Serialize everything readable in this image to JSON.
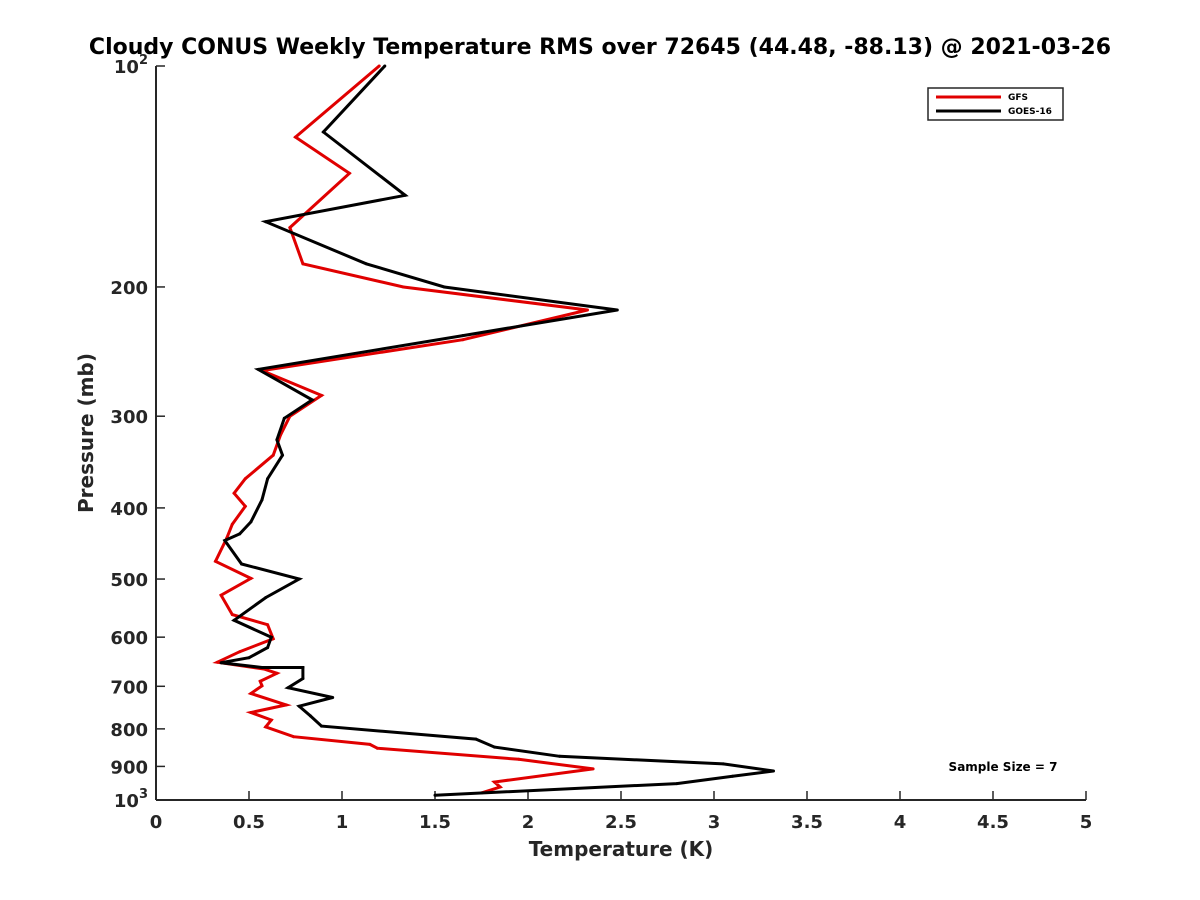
{
  "chart_data": {
    "type": "line",
    "title": "Cloudy CONUS Weekly Temperature RMS over 72645 (44.48, -88.13) @ 2021-03-26",
    "xlabel": "Temperature (K)",
    "ylabel": "Pressure (mb)",
    "xlim": [
      0,
      5
    ],
    "ylim": [
      100,
      1000
    ],
    "y_scale": "log",
    "y_reversed": true,
    "grid": false,
    "legend_position": "top-right",
    "x_ticks": [
      {
        "value": 0,
        "label": "0"
      },
      {
        "value": 0.5,
        "label": "0.5"
      },
      {
        "value": 1,
        "label": "1"
      },
      {
        "value": 1.5,
        "label": "1.5"
      },
      {
        "value": 2,
        "label": "2"
      },
      {
        "value": 2.5,
        "label": "2.5"
      },
      {
        "value": 3,
        "label": "3"
      },
      {
        "value": 3.5,
        "label": "3.5"
      },
      {
        "value": 4,
        "label": "4"
      },
      {
        "value": 4.5,
        "label": "4.5"
      },
      {
        "value": 5,
        "label": "5"
      }
    ],
    "y_ticks": [
      {
        "value": 100,
        "base": "10",
        "exp": "2"
      },
      {
        "value": 200,
        "label": "200"
      },
      {
        "value": 300,
        "label": "300"
      },
      {
        "value": 400,
        "label": "400"
      },
      {
        "value": 500,
        "label": "500"
      },
      {
        "value": 600,
        "label": "600"
      },
      {
        "value": 700,
        "label": "700"
      },
      {
        "value": 800,
        "label": "800"
      },
      {
        "value": 900,
        "label": "900"
      },
      {
        "value": 1000,
        "base": "10",
        "exp": "3"
      }
    ],
    "annotation": "Sample Size = 7",
    "series": [
      {
        "name": "GFS",
        "color": "#e00000",
        "points": [
          [
            1.2,
            100
          ],
          [
            0.75,
            125
          ],
          [
            1.04,
            140
          ],
          [
            0.72,
            166
          ],
          [
            0.79,
            186
          ],
          [
            1.33,
            200
          ],
          [
            2.32,
            215
          ],
          [
            1.65,
            236
          ],
          [
            0.57,
            260
          ],
          [
            0.89,
            281
          ],
          [
            0.72,
            300
          ],
          [
            0.67,
            318
          ],
          [
            0.63,
            339
          ],
          [
            0.48,
            365
          ],
          [
            0.42,
            382
          ],
          [
            0.48,
            398
          ],
          [
            0.41,
            421
          ],
          [
            0.38,
            440
          ],
          [
            0.32,
            473
          ],
          [
            0.51,
            499
          ],
          [
            0.35,
            526
          ],
          [
            0.41,
            559
          ],
          [
            0.6,
            577
          ],
          [
            0.63,
            603
          ],
          [
            0.45,
            628
          ],
          [
            0.33,
            649
          ],
          [
            0.58,
            663
          ],
          [
            0.65,
            672
          ],
          [
            0.56,
            689
          ],
          [
            0.57,
            699
          ],
          [
            0.51,
            716
          ],
          [
            0.7,
            742
          ],
          [
            0.51,
            760
          ],
          [
            0.62,
            778
          ],
          [
            0.59,
            795
          ],
          [
            0.74,
            820
          ],
          [
            1.15,
            840
          ],
          [
            1.19,
            850
          ],
          [
            1.95,
            880
          ],
          [
            2.35,
            907
          ],
          [
            1.82,
            945
          ],
          [
            1.85,
            960
          ],
          [
            1.75,
            978
          ]
        ]
      },
      {
        "name": "GOES-16",
        "color": "#000000",
        "points": [
          [
            1.23,
            100
          ],
          [
            0.9,
            123
          ],
          [
            1.34,
            150
          ],
          [
            0.59,
            163
          ],
          [
            1.13,
            186
          ],
          [
            1.55,
            200
          ],
          [
            2.48,
            215
          ],
          [
            1.65,
            233
          ],
          [
            0.55,
            259
          ],
          [
            0.84,
            285
          ],
          [
            0.69,
            302
          ],
          [
            0.65,
            323
          ],
          [
            0.68,
            339
          ],
          [
            0.6,
            365
          ],
          [
            0.57,
            390
          ],
          [
            0.51,
            418
          ],
          [
            0.45,
            434
          ],
          [
            0.37,
            443
          ],
          [
            0.46,
            477
          ],
          [
            0.77,
            500
          ],
          [
            0.59,
            530
          ],
          [
            0.42,
            569
          ],
          [
            0.62,
            600
          ],
          [
            0.6,
            620
          ],
          [
            0.5,
            640
          ],
          [
            0.35,
            650
          ],
          [
            0.57,
            660
          ],
          [
            0.79,
            660
          ],
          [
            0.79,
            683
          ],
          [
            0.71,
            703
          ],
          [
            0.95,
            725
          ],
          [
            0.77,
            745
          ],
          [
            0.83,
            768
          ],
          [
            0.89,
            793
          ],
          [
            1.72,
            826
          ],
          [
            1.82,
            847
          ],
          [
            2.17,
            872
          ],
          [
            3.05,
            893
          ],
          [
            3.32,
            913
          ],
          [
            3.1,
            928
          ],
          [
            2.8,
            950
          ],
          [
            1.5,
            985
          ]
        ]
      }
    ]
  }
}
